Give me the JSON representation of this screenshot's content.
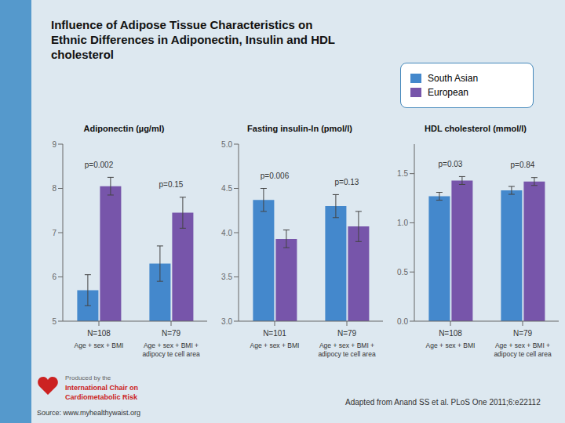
{
  "title": "Influence of Adipose Tissue Characteristics on\nEthnic Differences in Adiponectin, Insulin and HDL\ncholesterol",
  "legend": "upper right",
  "annotations": [
    "Produced by the",
    "International Chair on",
    "Cardiometabolic Risk",
    "Source: www.myhealthywaist.org",
    "Adapted from Anand SS et al. PLoS One 2011;6:e22112"
  ],
  "chart_data": [
    {
      "type": "bar",
      "title": "Adiponectin (µg/ml)",
      "categories": [
        "N=108",
        "N=79"
      ],
      "group_labels": [
        "Age + sex + BMI",
        "Age + sex + BMI +\nadipocy te cell area"
      ],
      "series": [
        {
          "name": "South Asian",
          "color": "#4488cc",
          "values": [
            5.7,
            6.3
          ],
          "errors": [
            0.35,
            0.4
          ]
        },
        {
          "name": "European",
          "color": "#7755aa",
          "values": [
            8.05,
            7.45
          ],
          "errors": [
            0.2,
            0.35
          ]
        }
      ],
      "annotations": [
        "p=0.002",
        "p=0.15"
      ],
      "ylim": [
        5,
        9
      ],
      "yticks": [
        5,
        6,
        7,
        8,
        9
      ],
      "grid": false
    },
    {
      "type": "bar",
      "title": "Fasting insulin-ln (pmol/l)",
      "categories": [
        "N=101",
        "N=79"
      ],
      "group_labels": [
        "Age + sex + BMI",
        "Age + sex + BMI +\nadipocy te cell area"
      ],
      "series": [
        {
          "name": "South Asian",
          "color": "#4488cc",
          "values": [
            4.37,
            4.3
          ],
          "errors": [
            0.13,
            0.13
          ]
        },
        {
          "name": "European",
          "color": "#7755aa",
          "values": [
            3.93,
            4.07
          ],
          "errors": [
            0.1,
            0.17
          ]
        }
      ],
      "annotations": [
        "p=0.006",
        "p=0.13"
      ],
      "ylim": [
        3.0,
        5.0
      ],
      "yticks": [
        {
          "value": 3.0,
          "label": "3.0"
        },
        {
          "value": 3.5,
          "label": "3.5"
        },
        {
          "value": 4.0,
          "label": "4.0"
        },
        {
          "value": 4.5,
          "label": "4.5"
        },
        {
          "value": 5.0,
          "label": "5.0"
        }
      ],
      "grid": false
    },
    {
      "type": "bar",
      "title": "HDL cholesterol (mmol/l)",
      "categories": [
        "N=108",
        "N=79"
      ],
      "group_labels": [
        "Age + sex + BMI",
        "Age + sex + BMI +\nadipocy te cell area"
      ],
      "series": [
        {
          "name": "South Asian",
          "color": "#4488cc",
          "values": [
            1.27,
            1.33
          ],
          "errors": [
            0.04,
            0.04
          ]
        },
        {
          "name": "European",
          "color": "#7755aa",
          "values": [
            1.43,
            1.42
          ],
          "errors": [
            0.04,
            0.04
          ]
        }
      ],
      "annotations": [
        "p=0.03",
        "p=0.84"
      ],
      "ylim": [
        0.0,
        1.8
      ],
      "yticks": [
        {
          "value": 0.0,
          "label": "0.0"
        },
        {
          "value": 0.5,
          "label": "0.5"
        },
        {
          "value": 1.0,
          "label": "1.0"
        },
        {
          "value": 1.5,
          "label": "1.5"
        }
      ],
      "grid": false
    }
  ]
}
